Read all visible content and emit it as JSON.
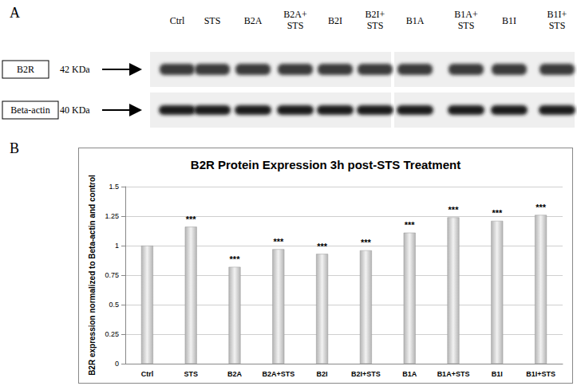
{
  "panel_a": {
    "label": "A",
    "lanes": [
      [
        "Ctrl"
      ],
      [
        "STS"
      ],
      [
        "B2A"
      ],
      [
        "B2A+",
        "STS"
      ],
      [
        "B2I"
      ],
      [
        "B2I+",
        "STS"
      ],
      [
        "B1A"
      ],
      [
        "B1A+",
        "STS"
      ],
      [
        "B1I"
      ],
      [
        "B1I+",
        "STS"
      ]
    ],
    "rows": [
      {
        "name": "B2R",
        "size": "42 KDa"
      },
      {
        "name": "Beta-actin",
        "size": "40 KDa"
      }
    ]
  },
  "panel_b_label": "B",
  "chart_data": {
    "type": "bar",
    "title": "B2R Protein Expression 3h post-STS Treatment",
    "y_label": "B2R expression normalized to Beta-actin and control",
    "categories": [
      "Ctrl",
      "STS",
      "B2A",
      "B2A+STS",
      "B2I",
      "B2I+STS",
      "B1A",
      "B1A+STS",
      "B1I",
      "B1I+STS"
    ],
    "values": [
      1.0,
      1.16,
      0.82,
      0.97,
      0.93,
      0.96,
      1.11,
      1.24,
      1.21,
      1.26
    ],
    "annotations": [
      null,
      "***",
      "***",
      "***",
      "***",
      "***",
      "***",
      "***",
      "***",
      "***"
    ],
    "color": "#b4b4b4",
    "ylim": [
      0,
      1.5
    ],
    "yticks": [
      0,
      0.25,
      0.5,
      0.75,
      1,
      1.25,
      1.5
    ],
    "grid": true
  }
}
